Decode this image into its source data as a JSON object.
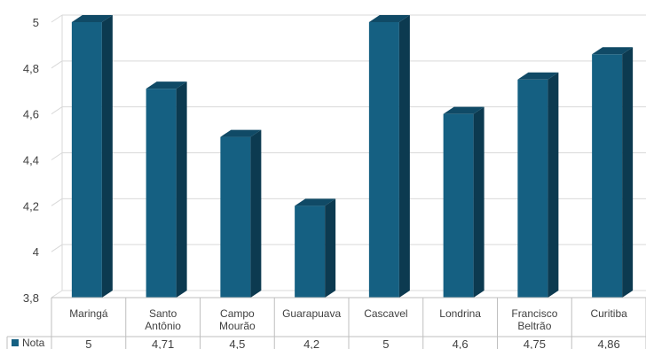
{
  "chart_data": {
    "type": "bar",
    "style": "3d-column",
    "title": "",
    "categories": [
      [
        "Maringá"
      ],
      [
        "Santo",
        "Antônio"
      ],
      [
        "Campo",
        "Mourão"
      ],
      [
        "Guarapuava"
      ],
      [
        "Cascavel"
      ],
      [
        "Londrina"
      ],
      [
        "Francisco",
        "Beltrão"
      ],
      [
        "Curitiba"
      ]
    ],
    "series": [
      {
        "name": "Nota",
        "color": "#156082",
        "values": [
          5,
          4.71,
          4.5,
          4.2,
          5,
          4.6,
          4.75,
          4.86
        ],
        "value_labels": [
          "5",
          "4,71",
          "4,5",
          "4,2",
          "5",
          "4,6",
          "4,75",
          "4,86"
        ]
      }
    ],
    "ylim": [
      3.8,
      5
    ],
    "yticks": [
      3.8,
      4,
      4.2,
      4.4,
      4.6,
      4.8,
      5
    ],
    "ytick_labels": [
      "3,8",
      "4",
      "4,2",
      "4,4",
      "4,6",
      "4,8",
      "5"
    ],
    "grid": true,
    "legend": "data-table",
    "colors": {
      "bar_front": "#156082",
      "bar_top": "#104a66",
      "bar_side": "#0c3a50",
      "grid": "#d9d9d9",
      "text": "#404040"
    }
  }
}
